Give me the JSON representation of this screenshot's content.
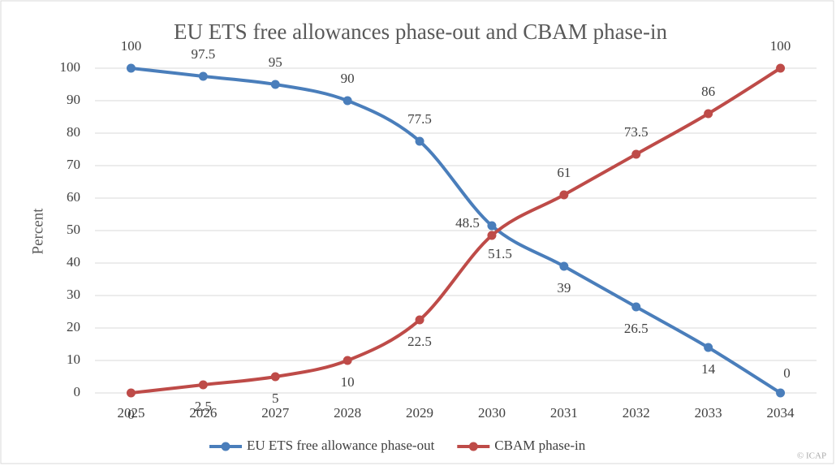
{
  "chart_data": {
    "type": "line",
    "title": "EU ETS free allowances phase-out and CBAM phase-in",
    "y_label": "Percent",
    "categories": [
      "2025",
      "2026",
      "2027",
      "2028",
      "2029",
      "2030",
      "2031",
      "2032",
      "2033",
      "2034"
    ],
    "series": [
      {
        "name": "EU ETS free allowance phase-out",
        "color": "#4a7ebb",
        "values": [
          100,
          97.5,
          95,
          90,
          77.5,
          51.5,
          39,
          26.5,
          14,
          0
        ]
      },
      {
        "name": "CBAM phase-in",
        "color": "#be4b48",
        "values": [
          0,
          2.5,
          5,
          10,
          22.5,
          48.5,
          61,
          73.5,
          86,
          100
        ]
      }
    ],
    "ylim": [
      0,
      100
    ],
    "yticks": [
      0,
      10,
      20,
      30,
      40,
      50,
      60,
      70,
      80,
      90,
      100
    ],
    "grid": true,
    "legend": "bottom",
    "smooth": true,
    "watermark": "© ICAP"
  }
}
